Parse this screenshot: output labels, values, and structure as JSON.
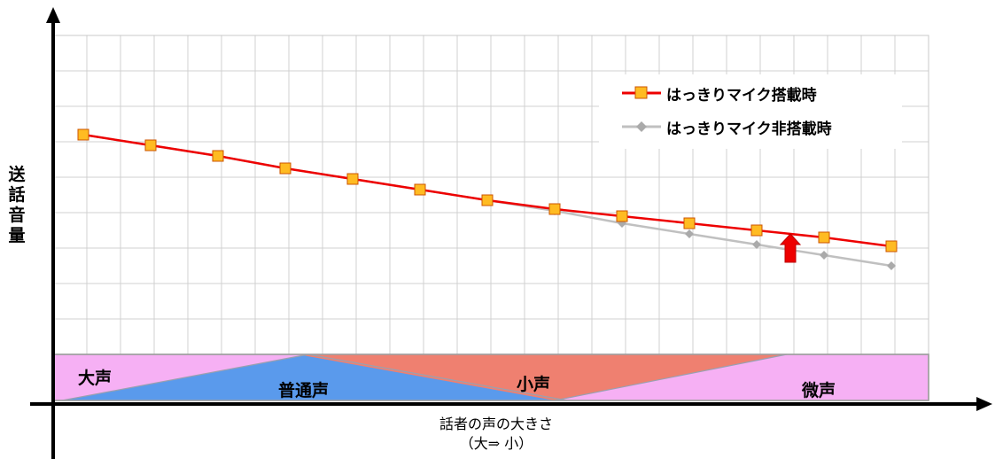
{
  "chart_data": {
    "type": "line",
    "title": "",
    "ylabel": "送話音量",
    "xlabel": "話者の声の大きさ",
    "xlabel_sub": "（大⇒ 小）",
    "grid": true,
    "x": [
      1,
      2,
      3,
      4,
      5,
      6,
      7,
      8,
      9,
      10,
      11,
      12,
      13
    ],
    "ylim": [
      0,
      9
    ],
    "series": [
      {
        "name": "はっきりマイク搭載時",
        "color": "#ee0000",
        "marker": "square",
        "marker_fill": "#ffbb22",
        "marker_edge": "#cc5500",
        "values": [
          6.2,
          5.9,
          5.6,
          5.25,
          4.95,
          4.65,
          4.35,
          4.1,
          3.9,
          3.7,
          3.5,
          3.3,
          3.05
        ]
      },
      {
        "name": "はっきりマイク非搭載時",
        "color": "#c0c0c0",
        "marker": "diamond",
        "marker_fill": "#aaaaaa",
        "values": [
          6.2,
          5.9,
          5.6,
          5.25,
          4.95,
          4.65,
          4.35,
          4.05,
          3.7,
          3.4,
          3.1,
          2.8,
          2.5
        ]
      }
    ],
    "zones": [
      {
        "label": "大声",
        "color": "#f6b0f4"
      },
      {
        "label": "普通声",
        "color": "#5a9aec"
      },
      {
        "label": "小声",
        "color": "#ef8070"
      },
      {
        "label": "微声",
        "color": "#f6b0f4"
      }
    ],
    "annotation": {
      "type": "up-arrow",
      "color": "#ee0000",
      "between_x": [
        11,
        12
      ]
    }
  }
}
